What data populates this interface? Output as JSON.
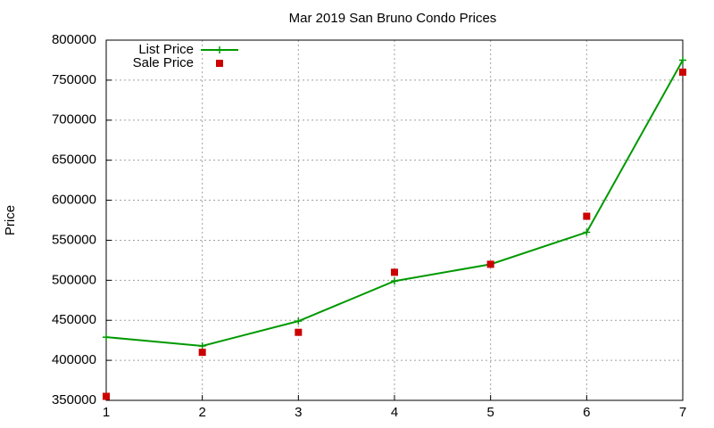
{
  "chart_data": {
    "type": "line",
    "title": "Mar 2019 San Bruno Condo Prices",
    "y_label": "Price",
    "x": [
      1,
      2,
      3,
      4,
      5,
      6,
      7
    ],
    "series": [
      {
        "name": "List Price",
        "color": "#009900",
        "style": "linespoints",
        "values": [
          429000,
          418000,
          449000,
          499000,
          520000,
          560000,
          775000
        ]
      },
      {
        "name": "Sale Price",
        "color": "#cc0000",
        "style": "points",
        "values": [
          355000,
          410000,
          435000,
          510000,
          520000,
          580000,
          760000
        ]
      }
    ],
    "xlim": [
      1,
      7
    ],
    "xticks": [
      1,
      2,
      3,
      4,
      5,
      6,
      7
    ],
    "ylim": [
      350000,
      800000
    ],
    "yticks": [
      350000,
      400000,
      450000,
      500000,
      550000,
      600000,
      650000,
      700000,
      750000,
      800000
    ],
    "grid": true,
    "legend": "top-left"
  }
}
